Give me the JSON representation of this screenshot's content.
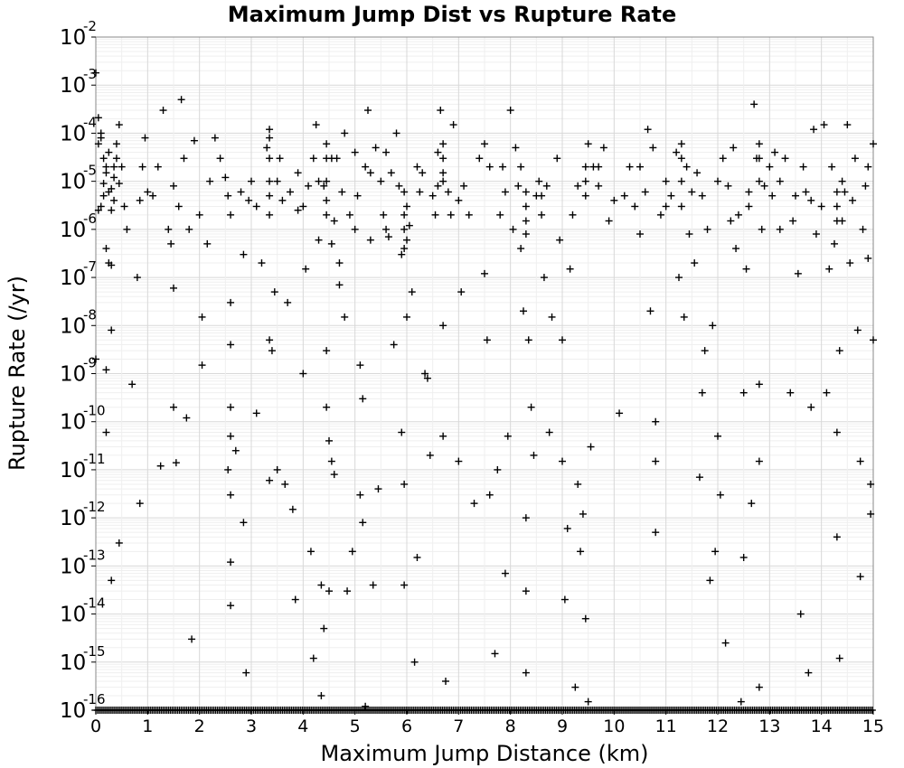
{
  "chart_data": {
    "type": "scatter",
    "title": "Maximum Jump Dist vs Rupture Rate",
    "xlabel": "Maximum Jump Distance (km)",
    "ylabel": "Rupture Rate (/yr)",
    "xlim": [
      0,
      15
    ],
    "ylim": [
      1e-16,
      0.01
    ],
    "yscale": "log",
    "grid": true,
    "marker": "+",
    "x_ticks": [
      "0",
      "1",
      "2",
      "3",
      "4",
      "5",
      "6",
      "7",
      "8",
      "9",
      "10",
      "11",
      "12",
      "13",
      "14",
      "15"
    ],
    "y_ticks": [
      {
        "base": "10",
        "exp": "-2"
      },
      {
        "base": "10",
        "exp": "-3"
      },
      {
        "base": "10",
        "exp": "-4"
      },
      {
        "base": "10",
        "exp": "-5"
      },
      {
        "base": "10",
        "exp": "-6"
      },
      {
        "base": "10",
        "exp": "-7"
      },
      {
        "base": "10",
        "exp": "-8"
      },
      {
        "base": "10",
        "exp": "-9"
      },
      {
        "base": "10",
        "exp": "-10"
      },
      {
        "base": "10",
        "exp": "-11"
      },
      {
        "base": "10",
        "exp": "-12"
      },
      {
        "base": "10",
        "exp": "-13"
      },
      {
        "base": "10",
        "exp": "-14"
      },
      {
        "base": "10",
        "exp": "-15"
      },
      {
        "base": "10",
        "exp": "-16"
      }
    ],
    "points": [
      [
        0.0,
        0.0018
      ],
      [
        0.05,
        0.00021
      ],
      [
        0.1,
        8e-05
      ],
      [
        0.15,
        3e-05
      ],
      [
        0.2,
        1.5e-05
      ],
      [
        0.25,
        6e-06
      ],
      [
        0.3,
        2.5e-06
      ],
      [
        0.35,
        1.2e-05
      ],
      [
        0.4,
        6e-05
      ],
      [
        0.45,
        0.00015
      ],
      [
        0.1,
        3e-06
      ],
      [
        0.2,
        4e-07
      ],
      [
        0.3,
        1.8e-07
      ],
      [
        0.05,
        2.5e-06
      ],
      [
        0.15,
        9e-06
      ],
      [
        0.35,
        4e-06
      ],
      [
        0.25,
        2e-07
      ],
      [
        0.0,
        2e-09
      ],
      [
        0.2,
        1.2e-09
      ],
      [
        0.3,
        8e-09
      ],
      [
        0.2,
        6e-11
      ],
      [
        0.45,
        3e-13
      ],
      [
        0.3,
        5e-14
      ],
      [
        0.7,
        6e-10
      ],
      [
        0.85,
        2e-12
      ],
      [
        0.9,
        2e-05
      ],
      [
        0.95,
        8e-05
      ],
      [
        1.0,
        6e-06
      ],
      [
        0.85,
        4e-06
      ],
      [
        0.8,
        1e-07
      ],
      [
        1.2,
        2e-05
      ],
      [
        1.25,
        1.2e-11
      ],
      [
        1.3,
        0.0003
      ],
      [
        1.4,
        1e-06
      ],
      [
        1.45,
        5e-07
      ],
      [
        1.5,
        8e-06
      ],
      [
        1.5,
        6e-08
      ],
      [
        1.55,
        1.4e-11
      ],
      [
        1.5,
        2e-10
      ],
      [
        1.65,
        0.0005
      ],
      [
        1.7,
        3e-05
      ],
      [
        1.75,
        1.2e-10
      ],
      [
        1.8,
        1e-06
      ],
      [
        1.85,
        3e-15
      ],
      [
        1.9,
        7e-05
      ],
      [
        2.0,
        2e-06
      ],
      [
        2.05,
        1.5e-08
      ],
      [
        2.05,
        1.5e-09
      ],
      [
        2.15,
        5e-07
      ],
      [
        2.3,
        8e-05
      ],
      [
        2.4,
        3e-05
      ],
      [
        2.5,
        1.2e-05
      ],
      [
        2.55,
        5e-06
      ],
      [
        2.6,
        2e-06
      ],
      [
        2.6,
        3e-08
      ],
      [
        2.6,
        4e-09
      ],
      [
        2.6,
        2e-10
      ],
      [
        2.6,
        5e-11
      ],
      [
        2.6,
        3e-12
      ],
      [
        2.6,
        1.2e-13
      ],
      [
        2.55,
        1e-11
      ],
      [
        2.6,
        1.5e-14
      ],
      [
        2.7,
        2.5e-11
      ],
      [
        2.85,
        8e-13
      ],
      [
        2.85,
        3e-07
      ],
      [
        2.9,
        6e-16
      ],
      [
        2.95,
        4e-06
      ],
      [
        3.0,
        1e-05
      ],
      [
        3.1,
        1.5e-10
      ],
      [
        3.2,
        2e-07
      ],
      [
        3.3,
        5e-05
      ],
      [
        3.35,
        0.00012
      ],
      [
        3.35,
        2e-06
      ],
      [
        3.35,
        5e-09
      ],
      [
        3.35,
        6e-12
      ],
      [
        3.4,
        3e-09
      ],
      [
        3.45,
        5e-08
      ],
      [
        3.5,
        1e-05
      ],
      [
        3.55,
        3e-05
      ],
      [
        3.5,
        1e-11
      ],
      [
        3.65,
        5e-12
      ],
      [
        3.7,
        3e-08
      ],
      [
        3.75,
        6e-06
      ],
      [
        3.8,
        1.5e-12
      ],
      [
        3.85,
        2e-14
      ],
      [
        3.9,
        2.5e-06
      ],
      [
        4.0,
        1e-09
      ],
      [
        4.05,
        1.5e-07
      ],
      [
        4.1,
        8e-06
      ],
      [
        4.15,
        2e-13
      ],
      [
        4.2,
        3e-05
      ],
      [
        4.2,
        1.2e-15
      ],
      [
        4.25,
        0.00015
      ],
      [
        4.3,
        6e-07
      ],
      [
        4.35,
        4e-14
      ],
      [
        4.35,
        2e-16
      ],
      [
        4.4,
        8e-06
      ],
      [
        4.4,
        5e-15
      ],
      [
        4.45,
        2e-06
      ],
      [
        4.45,
        3e-09
      ],
      [
        4.45,
        2e-10
      ],
      [
        4.5,
        4e-11
      ],
      [
        4.5,
        3e-14
      ],
      [
        4.55,
        5e-07
      ],
      [
        4.55,
        1.5e-11
      ],
      [
        4.6,
        1.5e-06
      ],
      [
        4.6,
        8e-12
      ],
      [
        4.65,
        3e-05
      ],
      [
        4.7,
        2e-07
      ],
      [
        4.7,
        7e-08
      ],
      [
        4.75,
        6e-06
      ],
      [
        4.8,
        0.0001
      ],
      [
        4.8,
        1.5e-08
      ],
      [
        4.85,
        3e-14
      ],
      [
        4.95,
        2e-13
      ],
      [
        5.0,
        1e-06
      ],
      [
        5.05,
        5e-06
      ],
      [
        5.1,
        1.5e-09
      ],
      [
        5.1,
        3e-12
      ],
      [
        5.15,
        8e-13
      ],
      [
        5.15,
        3e-10
      ],
      [
        5.2,
        2e-05
      ],
      [
        5.2,
        1.2e-16
      ],
      [
        5.25,
        0.0003
      ],
      [
        5.3,
        6e-07
      ],
      [
        5.35,
        4e-14
      ],
      [
        5.4,
        5e-05
      ],
      [
        5.45,
        4e-12
      ],
      [
        5.5,
        1e-05
      ],
      [
        5.55,
        2e-06
      ],
      [
        5.6,
        4e-05
      ],
      [
        5.65,
        7e-07
      ],
      [
        5.7,
        1.5e-05
      ],
      [
        5.75,
        4e-09
      ],
      [
        5.8,
        0.0001
      ],
      [
        5.85,
        8e-06
      ],
      [
        5.9,
        3e-07
      ],
      [
        5.9,
        6e-11
      ],
      [
        5.95,
        5e-12
      ],
      [
        5.95,
        4e-14
      ],
      [
        6.0,
        3e-06
      ],
      [
        6.0,
        1.5e-08
      ],
      [
        6.0,
        6e-07
      ],
      [
        6.05,
        1.2e-06
      ],
      [
        6.1,
        5e-08
      ],
      [
        6.15,
        1e-15
      ],
      [
        6.2,
        1.5e-13
      ],
      [
        6.25,
        6e-06
      ],
      [
        6.3,
        1.5e-05
      ],
      [
        6.35,
        1e-09
      ],
      [
        6.4,
        8e-10
      ],
      [
        6.45,
        2e-11
      ],
      [
        6.5,
        5e-06
      ],
      [
        6.55,
        2e-06
      ],
      [
        6.6,
        4e-05
      ],
      [
        6.65,
        0.0003
      ],
      [
        6.7,
        1e-05
      ],
      [
        6.7,
        1e-08
      ],
      [
        6.7,
        5e-11
      ],
      [
        6.75,
        4e-16
      ],
      [
        6.8,
        6e-06
      ],
      [
        6.85,
        2e-06
      ],
      [
        6.9,
        0.00015
      ],
      [
        7.0,
        1.5e-11
      ],
      [
        7.05,
        5e-08
      ],
      [
        7.1,
        8e-06
      ],
      [
        7.2,
        2e-06
      ],
      [
        7.3,
        2e-12
      ],
      [
        7.4,
        3e-05
      ],
      [
        7.5,
        6e-05
      ],
      [
        7.5,
        1.2e-07
      ],
      [
        7.55,
        5e-09
      ],
      [
        7.6,
        3e-12
      ],
      [
        7.7,
        1.5e-15
      ],
      [
        7.75,
        1e-11
      ],
      [
        7.8,
        2e-06
      ],
      [
        7.85,
        2e-05
      ],
      [
        7.9,
        7e-14
      ],
      [
        7.95,
        5e-11
      ],
      [
        8.0,
        0.0003
      ],
      [
        8.05,
        1e-06
      ],
      [
        8.1,
        5e-05
      ],
      [
        8.15,
        8e-06
      ],
      [
        8.2,
        4e-07
      ],
      [
        8.25,
        2e-08
      ],
      [
        8.3,
        1e-12
      ],
      [
        8.3,
        3e-14
      ],
      [
        8.3,
        6e-16
      ],
      [
        8.35,
        5e-09
      ],
      [
        8.4,
        2e-10
      ],
      [
        8.45,
        2e-11
      ],
      [
        8.5,
        5e-06
      ],
      [
        8.55,
        1e-05
      ],
      [
        8.6,
        2e-06
      ],
      [
        8.65,
        1e-07
      ],
      [
        8.7,
        8e-06
      ],
      [
        8.75,
        6e-11
      ],
      [
        8.8,
        1.5e-08
      ],
      [
        8.9,
        3e-05
      ],
      [
        8.95,
        6e-07
      ],
      [
        9.0,
        1.5e-11
      ],
      [
        9.0,
        5e-09
      ],
      [
        9.05,
        2e-14
      ],
      [
        9.1,
        6e-13
      ],
      [
        9.15,
        1.5e-07
      ],
      [
        9.2,
        2e-06
      ],
      [
        9.25,
        3e-16
      ],
      [
        9.3,
        5e-12
      ],
      [
        9.35,
        2e-13
      ],
      [
        9.4,
        1.2e-12
      ],
      [
        9.45,
        8e-15
      ],
      [
        9.5,
        6e-05
      ],
      [
        9.5,
        1.5e-16
      ],
      [
        9.55,
        3e-11
      ],
      [
        9.6,
        2e-05
      ],
      [
        9.7,
        8e-06
      ],
      [
        9.8,
        5e-05
      ],
      [
        9.9,
        1.5e-06
      ],
      [
        10.1,
        1.5e-10
      ],
      [
        10.2,
        5e-06
      ],
      [
        10.3,
        2e-05
      ],
      [
        10.4,
        3e-06
      ],
      [
        10.5,
        8e-07
      ],
      [
        10.6,
        6e-06
      ],
      [
        10.65,
        0.00012
      ],
      [
        10.7,
        2e-08
      ],
      [
        10.75,
        5e-05
      ],
      [
        10.8,
        1e-10
      ],
      [
        10.8,
        1.5e-11
      ],
      [
        10.8,
        5e-13
      ],
      [
        10.9,
        2e-06
      ],
      [
        11.0,
        1e-05
      ],
      [
        11.1,
        5e-06
      ],
      [
        11.2,
        4e-05
      ],
      [
        11.25,
        1e-07
      ],
      [
        11.3,
        3e-06
      ],
      [
        11.35,
        1.5e-08
      ],
      [
        11.4,
        2e-05
      ],
      [
        11.45,
        8e-07
      ],
      [
        11.5,
        6e-06
      ],
      [
        11.55,
        2e-07
      ],
      [
        11.6,
        1.5e-05
      ],
      [
        11.65,
        7e-12
      ],
      [
        11.7,
        4e-10
      ],
      [
        11.75,
        3e-09
      ],
      [
        11.8,
        1e-06
      ],
      [
        11.85,
        5e-14
      ],
      [
        11.9,
        1e-08
      ],
      [
        11.95,
        2e-13
      ],
      [
        12.0,
        5e-11
      ],
      [
        12.05,
        3e-12
      ],
      [
        12.1,
        3e-05
      ],
      [
        12.15,
        2.5e-15
      ],
      [
        12.2,
        8e-06
      ],
      [
        12.25,
        1.5e-06
      ],
      [
        12.3,
        5e-05
      ],
      [
        12.35,
        4e-07
      ],
      [
        12.4,
        2e-06
      ],
      [
        12.45,
        1.5e-16
      ],
      [
        12.5,
        4e-10
      ],
      [
        12.5,
        1.5e-13
      ],
      [
        12.55,
        1.5e-07
      ],
      [
        12.6,
        6e-06
      ],
      [
        12.65,
        2e-12
      ],
      [
        12.7,
        0.0004
      ],
      [
        12.75,
        3e-05
      ],
      [
        12.8,
        6e-10
      ],
      [
        12.8,
        1.5e-11
      ],
      [
        12.8,
        3e-16
      ],
      [
        12.85,
        1e-06
      ],
      [
        12.9,
        8e-06
      ],
      [
        13.0,
        2e-05
      ],
      [
        13.05,
        5e-06
      ],
      [
        13.1,
        4e-05
      ],
      [
        13.2,
        1e-06
      ],
      [
        13.3,
        3e-05
      ],
      [
        13.4,
        4e-10
      ],
      [
        13.45,
        1.5e-06
      ],
      [
        13.5,
        5e-06
      ],
      [
        13.55,
        1.2e-07
      ],
      [
        13.6,
        1e-14
      ],
      [
        13.65,
        2e-05
      ],
      [
        13.7,
        6e-06
      ],
      [
        13.75,
        6e-16
      ],
      [
        13.8,
        2e-10
      ],
      [
        13.85,
        0.00012
      ],
      [
        13.9,
        8e-07
      ],
      [
        14.0,
        3e-06
      ],
      [
        14.05,
        0.00015
      ],
      [
        14.1,
        4e-10
      ],
      [
        14.15,
        1.5e-07
      ],
      [
        14.2,
        2e-05
      ],
      [
        14.25,
        5e-07
      ],
      [
        14.3,
        6e-11
      ],
      [
        14.3,
        4e-13
      ],
      [
        14.35,
        3e-09
      ],
      [
        14.35,
        1.2e-15
      ],
      [
        14.4,
        1.5e-06
      ],
      [
        14.45,
        6e-06
      ],
      [
        14.5,
        0.00015
      ],
      [
        14.55,
        2e-07
      ],
      [
        14.6,
        4e-06
      ],
      [
        14.65,
        3e-05
      ],
      [
        14.7,
        8e-09
      ],
      [
        14.75,
        6e-14
      ],
      [
        14.75,
        1.5e-11
      ],
      [
        14.8,
        1e-06
      ],
      [
        14.85,
        8e-06
      ],
      [
        14.9,
        2.5e-07
      ],
      [
        14.95,
        5e-12
      ],
      [
        14.95,
        1.2e-12
      ],
      [
        15.0,
        5e-09
      ],
      [
        15.0,
        6e-05
      ],
      [
        0.5,
        2e-05
      ],
      [
        0.55,
        3e-06
      ],
      [
        0.6,
        1e-06
      ],
      [
        1.1,
        5e-06
      ],
      [
        1.6,
        3e-06
      ],
      [
        2.2,
        1e-05
      ],
      [
        2.8,
        6e-06
      ],
      [
        3.1,
        3e-06
      ],
      [
        3.6,
        4e-06
      ],
      [
        3.9,
        1.5e-05
      ],
      [
        4.0,
        3e-06
      ],
      [
        4.3,
        1e-05
      ],
      [
        4.55,
        3e-05
      ],
      [
        4.9,
        2e-06
      ],
      [
        5.0,
        4e-05
      ],
      [
        5.3,
        1.5e-05
      ],
      [
        5.6,
        1e-06
      ],
      [
        6.2,
        2e-05
      ],
      [
        6.6,
        8e-06
      ],
      [
        7.0,
        4e-06
      ],
      [
        7.6,
        2e-05
      ],
      [
        7.9,
        6e-06
      ],
      [
        8.2,
        2e-05
      ],
      [
        8.6,
        5e-06
      ],
      [
        9.3,
        8e-06
      ],
      [
        9.7,
        2e-05
      ],
      [
        10.0,
        4e-06
      ],
      [
        10.5,
        2e-05
      ],
      [
        11.0,
        3e-06
      ],
      [
        11.7,
        5e-06
      ],
      [
        12.0,
        1e-05
      ],
      [
        12.6,
        3e-06
      ],
      [
        13.2,
        1e-05
      ],
      [
        13.8,
        4e-06
      ],
      [
        14.4,
        1e-05
      ],
      [
        14.9,
        2e-05
      ],
      [
        0.05,
        6e-05
      ],
      [
        0.1,
        0.0001
      ],
      [
        0.15,
        5e-06
      ],
      [
        0.2,
        2e-05
      ],
      [
        0.25,
        4e-05
      ],
      [
        0.3,
        7e-06
      ],
      [
        0.35,
        2e-05
      ],
      [
        0.4,
        3e-05
      ],
      [
        0.45,
        9e-06
      ],
      [
        3.35,
        8e-05
      ],
      [
        3.35,
        3e-05
      ],
      [
        3.35,
        1e-05
      ],
      [
        3.35,
        5e-06
      ],
      [
        4.45,
        6e-05
      ],
      [
        4.45,
        3e-05
      ],
      [
        4.45,
        1e-05
      ],
      [
        4.45,
        4e-06
      ],
      [
        5.95,
        6e-06
      ],
      [
        5.95,
        2e-06
      ],
      [
        5.95,
        1e-06
      ],
      [
        5.95,
        4e-07
      ],
      [
        6.7,
        6e-05
      ],
      [
        6.7,
        3e-05
      ],
      [
        6.7,
        1.5e-05
      ],
      [
        8.3,
        6e-06
      ],
      [
        8.3,
        3e-06
      ],
      [
        8.3,
        1.5e-06
      ],
      [
        8.3,
        8e-07
      ],
      [
        9.45,
        2e-05
      ],
      [
        9.45,
        1e-05
      ],
      [
        9.45,
        5e-06
      ],
      [
        11.3,
        6e-05
      ],
      [
        11.3,
        3e-05
      ],
      [
        11.3,
        1e-05
      ],
      [
        12.8,
        6e-05
      ],
      [
        12.8,
        3e-05
      ],
      [
        12.8,
        1e-05
      ],
      [
        14.3,
        6e-06
      ],
      [
        14.3,
        3e-06
      ],
      [
        14.3,
        1.5e-06
      ]
    ],
    "baseline_note": "dense row of points at 10^-16 across full x range",
    "baseline_y": 1e-16
  }
}
